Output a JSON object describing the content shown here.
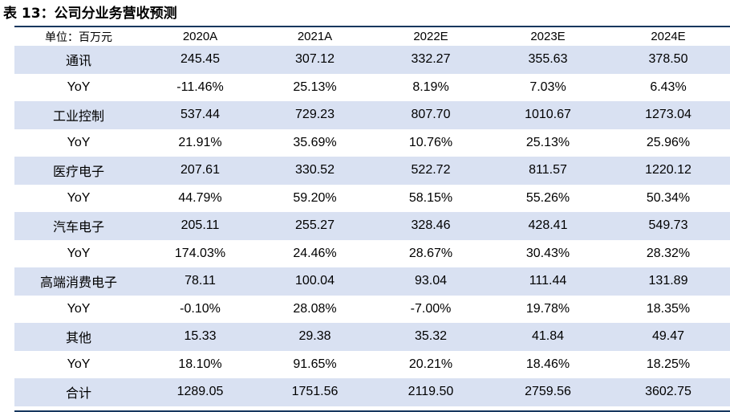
{
  "title": "表 13：公司分业务营收预测",
  "table": {
    "header": [
      "单位：百万元",
      "2020A",
      "2021A",
      "2022E",
      "2023E",
      "2024E"
    ],
    "rows": [
      {
        "label": "通讯",
        "values": [
          "245.45",
          "307.12",
          "332.27",
          "355.63",
          "378.50"
        ]
      },
      {
        "label": "YoY",
        "values": [
          "-11.46%",
          "25.13%",
          "8.19%",
          "7.03%",
          "6.43%"
        ]
      },
      {
        "label": "工业控制",
        "values": [
          "537.44",
          "729.23",
          "807.70",
          "1010.67",
          "1273.04"
        ]
      },
      {
        "label": "YoY",
        "values": [
          "21.91%",
          "35.69%",
          "10.76%",
          "25.13%",
          "25.96%"
        ]
      },
      {
        "label": "医疗电子",
        "values": [
          "207.61",
          "330.52",
          "522.72",
          "811.57",
          "1220.12"
        ]
      },
      {
        "label": "YoY",
        "values": [
          "44.79%",
          "59.20%",
          "58.15%",
          "55.26%",
          "50.34%"
        ]
      },
      {
        "label": "汽车电子",
        "values": [
          "205.11",
          "255.27",
          "328.46",
          "428.41",
          "549.73"
        ]
      },
      {
        "label": "YoY",
        "values": [
          "174.03%",
          "24.46%",
          "28.67%",
          "30.43%",
          "28.32%"
        ]
      },
      {
        "label": "高端消费电子",
        "values": [
          "78.11",
          "100.04",
          "93.04",
          "111.44",
          "131.89"
        ]
      },
      {
        "label": "YoY",
        "values": [
          "-0.10%",
          "28.08%",
          "-7.00%",
          "19.78%",
          "18.35%"
        ]
      },
      {
        "label": "其他",
        "values": [
          "15.33",
          "29.38",
          "35.32",
          "41.84",
          "49.47"
        ]
      },
      {
        "label": "YoY",
        "values": [
          "18.10%",
          "91.65%",
          "20.21%",
          "18.46%",
          "18.25%"
        ]
      },
      {
        "label": "合计",
        "values": [
          "1289.05",
          "1751.56",
          "2119.50",
          "2759.56",
          "3602.75"
        ]
      }
    ]
  },
  "colors": {
    "row_shade": "#d9e1f2",
    "rule": "#17375e"
  }
}
